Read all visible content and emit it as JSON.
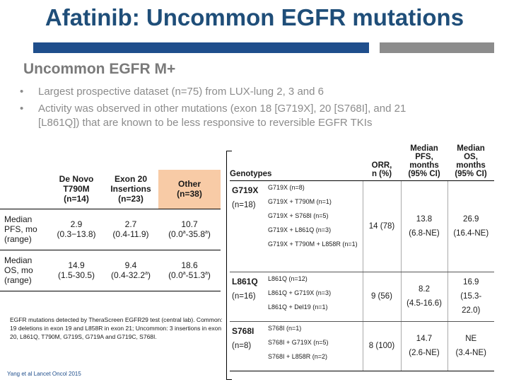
{
  "slide": {
    "title": "Afatinib: Uncommon EGFR mutations",
    "subtitle": "Uncommon EGFR M+",
    "bullets": [
      "Largest prospective dataset (n=75) from LUX-lung 2, 3 and 6",
      "Activity was observed in other mutations (exon 18 [G719X], 20 [S768I], and 21 [L861Q]) that are known to be less responsive to reversible EGFR TKIs"
    ],
    "colors": {
      "title": "#1f4e79",
      "bar_blue": "#1f4e8c",
      "bar_gray": "#8c8c8c",
      "other_highlight": "#f8cba6"
    }
  },
  "left_table": {
    "columns": [
      {
        "line1": "De Novo",
        "line2": "T790M",
        "line3": "(n=14)"
      },
      {
        "line1": "Exon 20",
        "line2": "Insertions",
        "line3": "(n=23)"
      },
      {
        "line1": "Other",
        "line2": "",
        "line3": "(n=38)"
      }
    ],
    "rows": [
      {
        "label1": "Median",
        "label2": "PFS, mo",
        "label3": "(range)",
        "cells": [
          {
            "main": "2.9",
            "range": "(0.3−13.8)"
          },
          {
            "main": "2.7",
            "range": "(0.4-11.9)"
          },
          {
            "main": "10.7",
            "range_pre": "(0.0",
            "sup1": "a",
            "range_mid": "-35.8",
            "sup2": "a",
            "range_post": ")"
          }
        ]
      },
      {
        "label1": "Median",
        "label2": "OS, mo",
        "label3": "(range)",
        "cells": [
          {
            "main": "14.9",
            "range": "(1.5-30.5)"
          },
          {
            "main": "9.4",
            "range_pre": "(0.4-32.2",
            "sup": "a",
            "range_post": ")"
          },
          {
            "main": "18.6",
            "range_pre": "(0.0",
            "sup1": "a",
            "range_mid": "-51.3",
            "sup2": "a",
            "range_post": ")"
          }
        ]
      }
    ]
  },
  "footnote": "EGFR mutations detected by TheraScreen EGFR29 test (central lab). Common: 19 deletions in exon 19 and L858R in exon 21; Uncommon: 3 insertions in exon 20, L861Q, T790M, G719S, G719A and G719C, S768I.",
  "citation": "Yang et al Lancet Oncol 2015",
  "right_table": {
    "headers": {
      "genotypes": "Genotypes",
      "orr": [
        "ORR,",
        "n (%)"
      ],
      "pfs": [
        "Median",
        "PFS,",
        "months",
        "(95% CI)"
      ],
      "os": [
        "Median",
        "OS,",
        "months",
        "(95% CI)"
      ]
    },
    "groups": [
      {
        "name": "G719X",
        "n": "(n=18)",
        "subs": [
          "G719X (n=8)",
          "G719X + T790M (n=1)",
          "G719X + S768I (n=5)",
          "G719X + L861Q (n=3)",
          "G719X + T790M + L858R (n=1)"
        ],
        "orr": "14 (78)",
        "pfs": [
          "13.8",
          "(6.8-NE)"
        ],
        "os": [
          "26.9",
          "(16.4-NE)"
        ]
      },
      {
        "name": "L861Q",
        "n": "(n=16)",
        "subs": [
          "L861Q (n=12)",
          "L861Q + G719X (n=3)",
          "L861Q + Del19 (n=1)"
        ],
        "orr": "9 (56)",
        "pfs": [
          "8.2",
          "(4.5-16.6)"
        ],
        "os": [
          "16.9",
          "(15.3-",
          "22.0)"
        ]
      },
      {
        "name": "S768I",
        "n": "(n=8)",
        "subs": [
          "S768I (n=1)",
          "S768I + G719X (n=5)",
          "S768I + L858R (n=2)"
        ],
        "orr": "8 (100)",
        "pfs": [
          "14.7",
          "(2.6-NE)"
        ],
        "os": [
          "NE",
          "(3.4-NE)"
        ]
      }
    ]
  }
}
